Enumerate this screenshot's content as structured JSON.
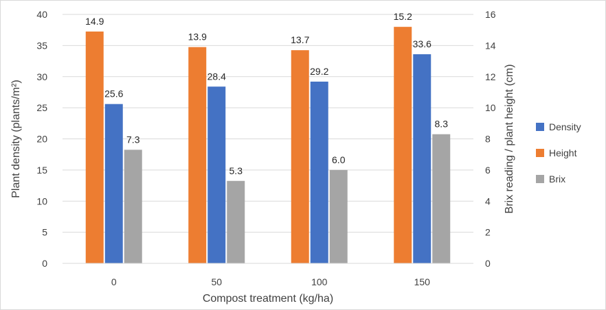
{
  "chart_data": {
    "type": "bar",
    "categories": [
      "0",
      "50",
      "100",
      "150"
    ],
    "series": [
      {
        "name": "Density",
        "axis": "left",
        "values": [
          25.6,
          28.4,
          29.2,
          33.6
        ],
        "labels": [
          "25.6",
          "28.4",
          "29.2",
          "33.6"
        ],
        "color": "#4472C4"
      },
      {
        "name": "Height",
        "axis": "right",
        "values": [
          14.9,
          13.9,
          13.7,
          15.2
        ],
        "labels": [
          "14.9",
          "13.9",
          "13.7",
          "15.2"
        ],
        "color": "#ED7D31"
      },
      {
        "name": "Brix",
        "axis": "right",
        "values": [
          7.3,
          5.3,
          6.0,
          8.3
        ],
        "labels": [
          "7.3",
          "5.3",
          "6.0",
          "8.3"
        ],
        "color": "#A5A5A5"
      }
    ],
    "xlabel": "Compost treatment (kg/ha)",
    "ylabel": "Plant density (plants/m²)",
    "y2label": "Brix reading / plant height (cm)",
    "ylim": [
      0,
      40
    ],
    "y2lim": [
      0,
      16
    ],
    "yticks": [
      "0",
      "5",
      "10",
      "15",
      "20",
      "25",
      "30",
      "35",
      "40"
    ],
    "y2ticks": [
      "0",
      "2",
      "4",
      "6",
      "8",
      "10",
      "12",
      "14",
      "16"
    ],
    "grid": true,
    "legend_position": "right"
  }
}
